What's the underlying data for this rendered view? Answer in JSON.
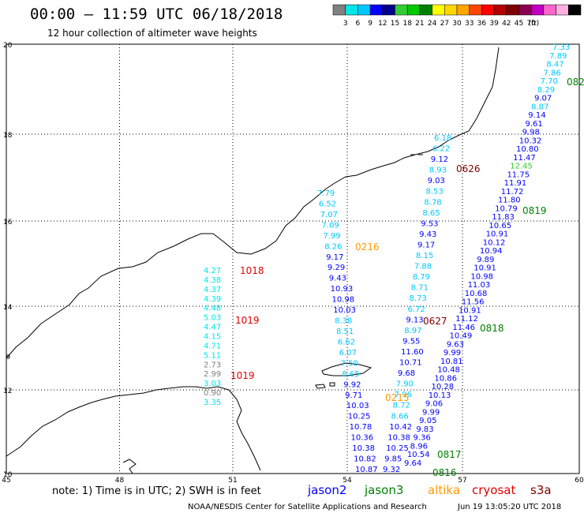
{
  "header": {
    "title": "00:00 – 11:59 UTC 06/18/2018",
    "subtitle": "12 hour collection of altimeter wave heights"
  },
  "scale": {
    "colors": [
      "#808080",
      "#00e5e5",
      "#00c8ff",
      "#0000ff",
      "#00008b",
      "#32cd32",
      "#00c800",
      "#008000",
      "#ffff00",
      "#ffd700",
      "#ffa500",
      "#ff4500",
      "#ff0000",
      "#b40000",
      "#7f0000",
      "#8b0050",
      "#c000c0",
      "#ff66cc",
      "#ffb0e0",
      "#000000"
    ],
    "labels": [
      "3",
      "6",
      "9",
      "12",
      "15",
      "18",
      "21",
      "24",
      "27",
      "30",
      "33",
      "36",
      "39",
      "42",
      "45",
      "70",
      "(ft)"
    ]
  },
  "axes": {
    "lon_labels": [
      "45",
      "48",
      "51",
      "54",
      "57",
      "60"
    ],
    "lat_labels": [
      "20",
      "18",
      "16",
      "14",
      "12",
      "10"
    ]
  },
  "chart_data": {
    "type": "map",
    "time_labels": [
      {
        "text": "1018",
        "color": "#e00000"
      },
      {
        "text": "1019",
        "color": "#e00000"
      },
      {
        "text": "1019",
        "color": "#e00000"
      },
      {
        "text": "0216",
        "color": "#ff9900"
      },
      {
        "text": "0215",
        "color": "#ff9900"
      },
      {
        "text": "0626",
        "color": "#7f0000"
      },
      {
        "text": "0627",
        "color": "#7f0000"
      },
      {
        "text": "0819",
        "color": "#008000"
      },
      {
        "text": "0818",
        "color": "#008000"
      },
      {
        "text": "0817",
        "color": "#008000"
      },
      {
        "text": "0816",
        "color": "#008000"
      },
      {
        "text": "082",
        "color": "#008000"
      }
    ],
    "tracks": [
      {
        "values": [
          "4.27",
          "4.38",
          "4.37",
          "4.39",
          "4.48",
          "5.03",
          "4.47",
          "4.15",
          "4.71",
          "5.11",
          "2.73",
          "2.99",
          "3.03",
          "0.90",
          "3.35"
        ],
        "colors": [
          "#00e5e5",
          "#00e5e5",
          "#00e5e5",
          "#00e5e5",
          "#00e5e5",
          "#00e5e5",
          "#00e5e5",
          "#00e5e5",
          "#00e5e5",
          "#00e5e5",
          "#808080",
          "#808080",
          "#00e5e5",
          "#808080",
          "#00e5e5"
        ]
      },
      {
        "values": [
          "7.79",
          "6.52",
          "7.07",
          "7.09",
          "7.99",
          "8.26",
          "9.17",
          "9.29",
          "9.43",
          "10.93",
          "10.98",
          "10.03",
          "8.38",
          "8.51",
          "6.62",
          "6.07",
          "7.50",
          "8.65",
          "9.92",
          "9.71",
          "10.03",
          "10.25",
          "10.78",
          "10.36",
          "10.38",
          "10.82",
          "10.87"
        ],
        "colors": [
          "#00c8ff",
          "#00c8ff",
          "#00c8ff",
          "#00c8ff",
          "#00c8ff",
          "#00c8ff",
          "#0000ff",
          "#0000ff",
          "#0000ff",
          "#0000ff",
          "#0000ff",
          "#0000ff",
          "#00c8ff",
          "#00c8ff",
          "#00c8ff",
          "#00c8ff",
          "#00c8ff",
          "#00c8ff",
          "#0000ff",
          "#0000ff",
          "#0000ff",
          "#0000ff",
          "#0000ff",
          "#0000ff",
          "#0000ff",
          "#0000ff",
          "#0000ff"
        ]
      },
      {
        "values": [
          "6.18",
          "6.22",
          "9.12",
          "8.93",
          "9.03",
          "8.53",
          "8.78",
          "8.65",
          "9.53",
          "9.43",
          "9.17",
          "8.15",
          "7.88",
          "8.79",
          "8.71",
          "8.73",
          "6.72",
          "9.13",
          "8.97",
          "9.55",
          "11.60",
          "10.71",
          "9.68",
          "7.90",
          "7.96",
          "8.72",
          "8.66",
          "10.42",
          "10.38",
          "10.25",
          "9.85",
          "9.32"
        ],
        "colors": [
          "#00c8ff",
          "#00c8ff",
          "#0000ff",
          "#00c8ff",
          "#0000ff",
          "#00c8ff",
          "#00c8ff",
          "#00c8ff",
          "#0000ff",
          "#0000ff",
          "#0000ff",
          "#00c8ff",
          "#00c8ff",
          "#00c8ff",
          "#00c8ff",
          "#00c8ff",
          "#00c8ff",
          "#0000ff",
          "#00c8ff",
          "#0000ff",
          "#0000ff",
          "#0000ff",
          "#0000ff",
          "#00c8ff",
          "#00c8ff",
          "#00c8ff",
          "#00c8ff",
          "#0000ff",
          "#0000ff",
          "#0000ff",
          "#0000ff",
          "#0000ff"
        ]
      },
      {
        "values": [
          "7.33",
          "7.89",
          "8.47",
          "7.86",
          "7.70",
          "8.29",
          "9.07",
          "8.87",
          "9.14",
          "9.61",
          "9.98",
          "10.32",
          "10.80",
          "11.47",
          "12.45",
          "11.75",
          "11.91",
          "11.72",
          "11.80",
          "10.79",
          "11.83",
          "10.65",
          "10.91",
          "10.12",
          "10.94",
          "9.89",
          "10.91",
          "10.98",
          "11.03",
          "10.68",
          "11.56",
          "10.91",
          "11.12",
          "11.46",
          "10.49",
          "9.63",
          "9.99",
          "10.81",
          "10.48",
          "10.86",
          "10.28",
          "10.13",
          "9.06",
          "9.99",
          "9.05",
          "9.83",
          "9.36",
          "8.96",
          "10.54",
          "9.64"
        ],
        "colors": [
          "#00c8ff",
          "#00c8ff",
          "#00c8ff",
          "#00c8ff",
          "#00c8ff",
          "#00c8ff",
          "#0000ff",
          "#00c8ff",
          "#0000ff",
          "#0000ff",
          "#0000ff",
          "#0000ff",
          "#0000ff",
          "#0000ff",
          "#32cd32",
          "#0000ff",
          "#0000ff",
          "#0000ff",
          "#0000ff",
          "#0000ff",
          "#0000ff",
          "#0000ff",
          "#0000ff",
          "#0000ff",
          "#0000ff",
          "#0000ff",
          "#0000ff",
          "#0000ff",
          "#0000ff",
          "#0000ff",
          "#0000ff",
          "#0000ff",
          "#0000ff",
          "#0000ff",
          "#0000ff",
          "#0000ff",
          "#0000ff",
          "#0000ff",
          "#0000ff",
          "#0000ff",
          "#0000ff",
          "#0000ff",
          "#0000ff",
          "#0000ff",
          "#0000ff",
          "#0000ff",
          "#0000ff",
          "#0000ff",
          "#0000ff",
          "#0000ff"
        ]
      }
    ]
  },
  "footer": {
    "note": "note: 1) Time is in UTC; 2) SWH is in feet",
    "satellites": [
      {
        "name": "jason2",
        "color": "#0000ff"
      },
      {
        "name": "jason3",
        "color": "#008000"
      },
      {
        "name": "altika",
        "color": "#ff9900"
      },
      {
        "name": "cryosat",
        "color": "#e00000"
      },
      {
        "name": "s3a",
        "color": "#7f0000"
      }
    ],
    "credit": "NOAA/NESDIS Center for Satellite Applications and Research",
    "timestamp": "Jun 19 13:05:20 UTC 2018"
  }
}
